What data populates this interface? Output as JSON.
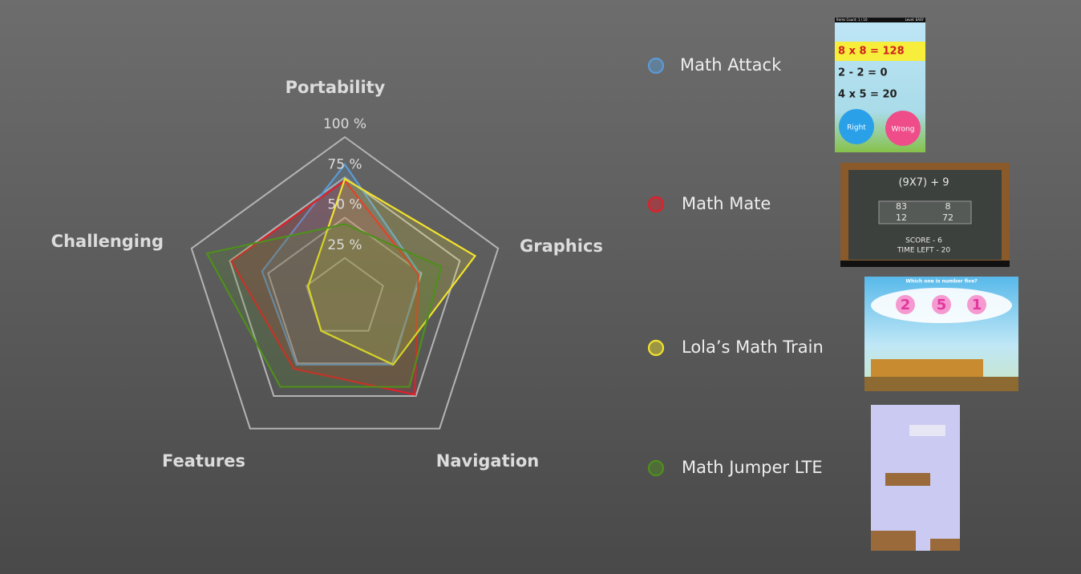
{
  "chart_data": {
    "type": "radar",
    "categories": [
      "Portability",
      "Graphics",
      "Navigation",
      "Features",
      "Challenging"
    ],
    "series": [
      {
        "name": "Math Attack",
        "color": "#5b9bd5",
        "values": [
          83,
          49,
          51,
          51,
          54
        ]
      },
      {
        "name": "Math Mate",
        "color": "#e0202a",
        "values": [
          73,
          48,
          74,
          54,
          74
        ]
      },
      {
        "name": "Lola’s Math Train",
        "color": "#f2e22c",
        "values": [
          74,
          85,
          51,
          25,
          24
        ]
      },
      {
        "name": "Math Jumper LTE",
        "color": "#4f8f1c",
        "values": [
          46,
          63,
          68,
          68,
          90
        ]
      }
    ],
    "rlim": [
      0,
      100
    ],
    "rticks": [
      {
        "value": 25,
        "label": "25 %"
      },
      {
        "value": 50,
        "label": "50 %"
      },
      {
        "value": 75,
        "label": "75 %"
      },
      {
        "value": 100,
        "label": "100 %"
      }
    ],
    "grid": true
  },
  "thumbnails": [
    {
      "texts": [
        "Items Count: 1 / 10",
        "Level: EASY",
        "8 x 8  =  128",
        "2 - 2  =  0",
        "4 x 5  =  20",
        "Right",
        "Wrong"
      ]
    },
    {
      "texts": [
        "(9X7) + 9",
        "83",
        "8",
        "12",
        "72",
        "SCORE - 6",
        "TIME LEFT - 20"
      ]
    },
    {
      "texts": [
        "Which one is number five?",
        "2",
        "5",
        "1"
      ]
    },
    {
      "texts": []
    }
  ]
}
